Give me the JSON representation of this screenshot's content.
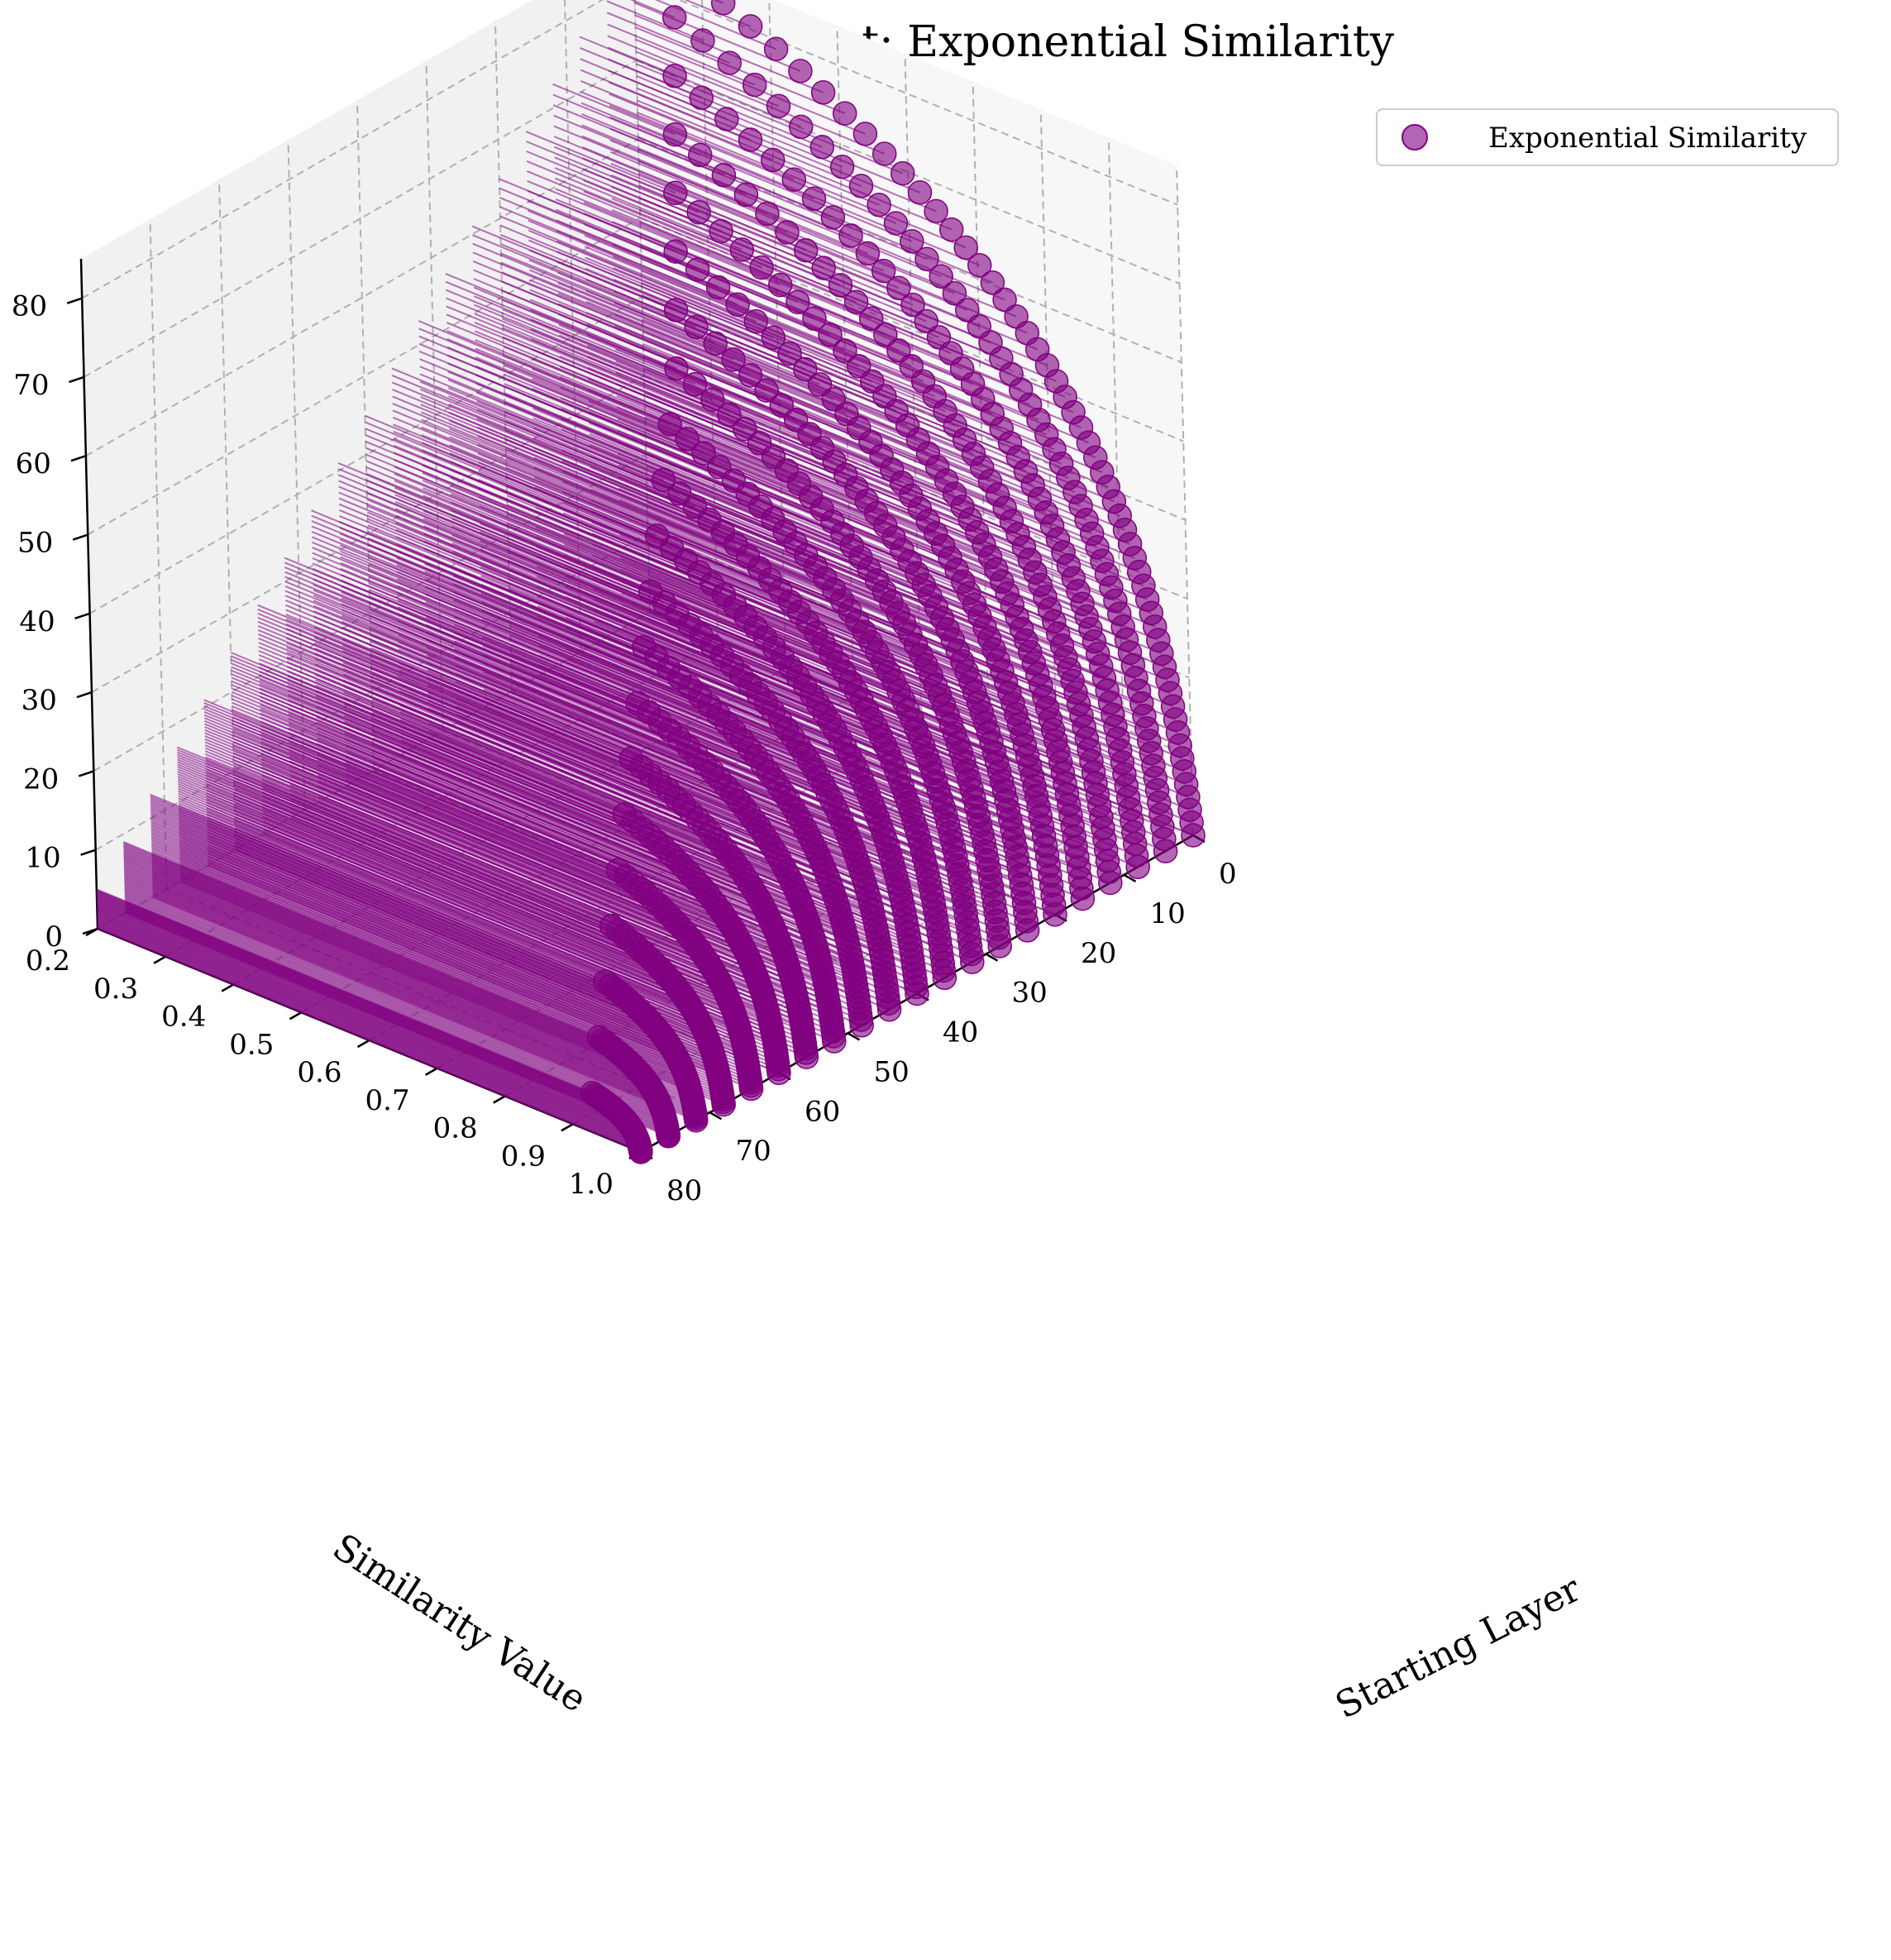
{
  "chart_data": {
    "type": "scatter",
    "projection": "3d",
    "title": "3D Similarity Plot: Exponential Similarity",
    "xlabel": "Similarity Value",
    "ylabel": "Starting Layer",
    "zlabel": "",
    "xlim": [
      0.2,
      1.0
    ],
    "ylim": [
      0,
      80
    ],
    "zlim": [
      0,
      85
    ],
    "xticks": [
      "0.2",
      "0.3",
      "0.4",
      "0.5",
      "0.6",
      "0.7",
      "0.8",
      "0.9",
      "1.0"
    ],
    "yticks": [
      "0",
      "10",
      "20",
      "30",
      "40",
      "50",
      "60",
      "70",
      "80"
    ],
    "zticks": [
      "0",
      "10",
      "20",
      "30",
      "40",
      "50",
      "60",
      "70",
      "80"
    ],
    "grid": true,
    "legend_position": "top-right",
    "marker_color": "#800080",
    "stem_lines": true,
    "series": [
      {
        "name": "Exponential Similarity",
        "curves": [
          {
            "start_layer": 0,
            "sim_min": 0.245,
            "z_max": 85
          },
          {
            "start_layer": 4,
            "sim_min": 0.3,
            "z_max": 81
          },
          {
            "start_layer": 8,
            "sim_min": 0.34,
            "z_max": 77
          },
          {
            "start_layer": 12,
            "sim_min": 0.38,
            "z_max": 73
          },
          {
            "start_layer": 16,
            "sim_min": 0.42,
            "z_max": 69
          },
          {
            "start_layer": 20,
            "sim_min": 0.46,
            "z_max": 65
          },
          {
            "start_layer": 24,
            "sim_min": 0.5,
            "z_max": 61
          },
          {
            "start_layer": 28,
            "sim_min": 0.54,
            "z_max": 57
          },
          {
            "start_layer": 32,
            "sim_min": 0.57,
            "z_max": 53
          },
          {
            "start_layer": 36,
            "sim_min": 0.6,
            "z_max": 49
          },
          {
            "start_layer": 40,
            "sim_min": 0.63,
            "z_max": 45
          },
          {
            "start_layer": 44,
            "sim_min": 0.66,
            "z_max": 41
          },
          {
            "start_layer": 48,
            "sim_min": 0.69,
            "z_max": 37
          },
          {
            "start_layer": 52,
            "sim_min": 0.72,
            "z_max": 33
          },
          {
            "start_layer": 56,
            "sim_min": 0.75,
            "z_max": 29
          },
          {
            "start_layer": 60,
            "sim_min": 0.78,
            "z_max": 25
          },
          {
            "start_layer": 64,
            "sim_min": 0.81,
            "z_max": 21
          },
          {
            "start_layer": 68,
            "sim_min": 0.84,
            "z_max": 17
          },
          {
            "start_layer": 72,
            "sim_min": 0.87,
            "z_max": 13
          },
          {
            "start_layer": 76,
            "sim_min": 0.9,
            "z_max": 9
          },
          {
            "start_layer": 80,
            "sim_min": 0.93,
            "z_max": 5
          }
        ]
      }
    ]
  }
}
